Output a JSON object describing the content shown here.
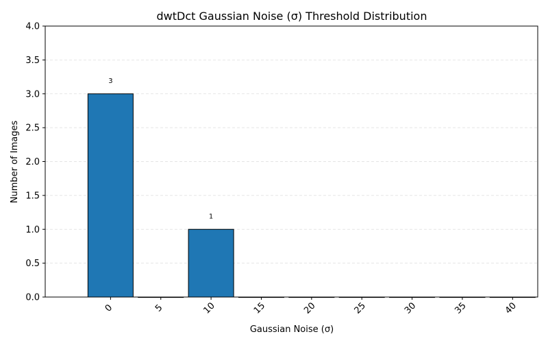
{
  "chart_data": {
    "type": "bar",
    "title": "dwtDct Gaussian Noise (σ) Threshold Distribution",
    "xlabel": "Gaussian Noise (σ)",
    "ylabel": "Number of Images",
    "categories": [
      "0",
      "5",
      "10",
      "15",
      "20",
      "25",
      "30",
      "35",
      "40"
    ],
    "x": [
      0,
      5,
      10,
      15,
      20,
      25,
      30,
      35,
      40
    ],
    "values": [
      3,
      0,
      1,
      0,
      0,
      0,
      0,
      0,
      0
    ],
    "data_labels": [
      "3",
      "",
      "1",
      "",
      "",
      "",
      "",
      "",
      ""
    ],
    "ylim": [
      0,
      4
    ],
    "yticks": [
      "0.0",
      "0.5",
      "1.0",
      "1.5",
      "2.0",
      "2.5",
      "3.0",
      "3.5",
      "4.0"
    ],
    "grid": "y-dashed",
    "legend": "none",
    "bar_color": "#1f77b4",
    "edge_color": "#000000"
  }
}
